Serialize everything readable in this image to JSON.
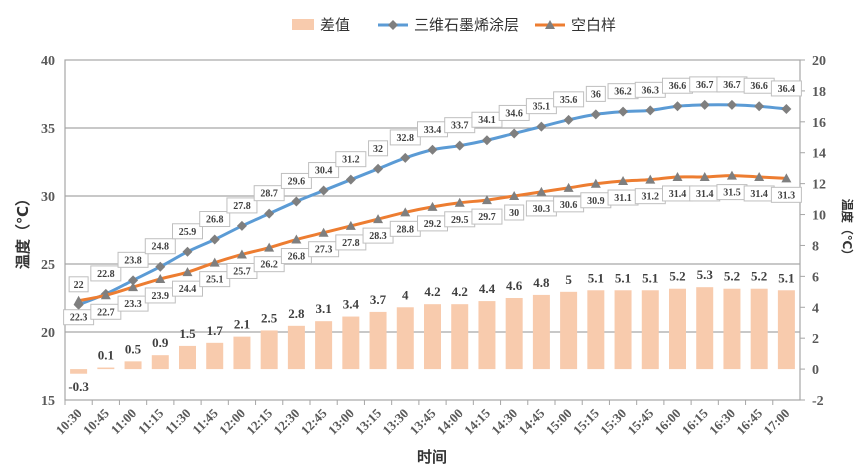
{
  "chart_data": {
    "type": "bar+line",
    "title": "",
    "xlabel": "时间",
    "ylabel": "温度（℃）",
    "y2label": "温度（℃）",
    "ylim": [
      15,
      40
    ],
    "y2lim": [
      -2,
      20
    ],
    "yticks": [
      15,
      20,
      25,
      30,
      35,
      40
    ],
    "y2ticks": [
      -2,
      0,
      2,
      4,
      6,
      8,
      10,
      12,
      14,
      16,
      18,
      20
    ],
    "grid": true,
    "legend_position": "top",
    "categories": [
      "10:30",
      "10:45",
      "11:00",
      "11:15",
      "11:30",
      "11:45",
      "12:00",
      "12:15",
      "12:30",
      "12:45",
      "13:00",
      "13:15",
      "13:30",
      "13:45",
      "14:00",
      "14:15",
      "14:30",
      "14:45",
      "15:00",
      "15:15",
      "15:30",
      "15:45",
      "16:00",
      "16:15",
      "16:30",
      "16:45",
      "17:00"
    ],
    "series": [
      {
        "name": "差值",
        "type": "bar",
        "axis": "right",
        "color": "#F8CBAD",
        "values": [
          -0.3,
          0.1,
          0.5,
          0.9,
          1.5,
          1.7,
          2.1,
          2.5,
          2.8,
          3.1,
          3.4,
          3.7,
          4,
          4.2,
          4.2,
          4.4,
          4.6,
          4.8,
          5,
          5.1,
          5.1,
          5.1,
          5.2,
          5.3,
          5.2,
          5.2,
          5.1
        ]
      },
      {
        "name": "三维石墨烯涂层",
        "type": "line",
        "axis": "left",
        "color": "#5B9BD5",
        "marker": "diamond",
        "values": [
          22,
          22.8,
          23.8,
          24.8,
          25.9,
          26.8,
          27.8,
          28.7,
          29.6,
          30.4,
          31.2,
          32,
          32.8,
          33.4,
          33.7,
          34.1,
          34.6,
          35.1,
          35.6,
          36,
          36.2,
          36.3,
          36.6,
          36.7,
          36.7,
          36.6,
          36.4
        ]
      },
      {
        "name": "空白样",
        "type": "line",
        "axis": "left",
        "color": "#ED7D31",
        "marker": "triangle",
        "values": [
          22.3,
          22.7,
          23.3,
          23.9,
          24.4,
          25.1,
          25.7,
          26.2,
          26.8,
          27.3,
          27.8,
          28.3,
          28.8,
          29.2,
          29.5,
          29.7,
          30,
          30.3,
          30.6,
          30.9,
          31.1,
          31.2,
          31.4,
          31.4,
          31.5,
          31.4,
          31.3
        ]
      }
    ]
  }
}
